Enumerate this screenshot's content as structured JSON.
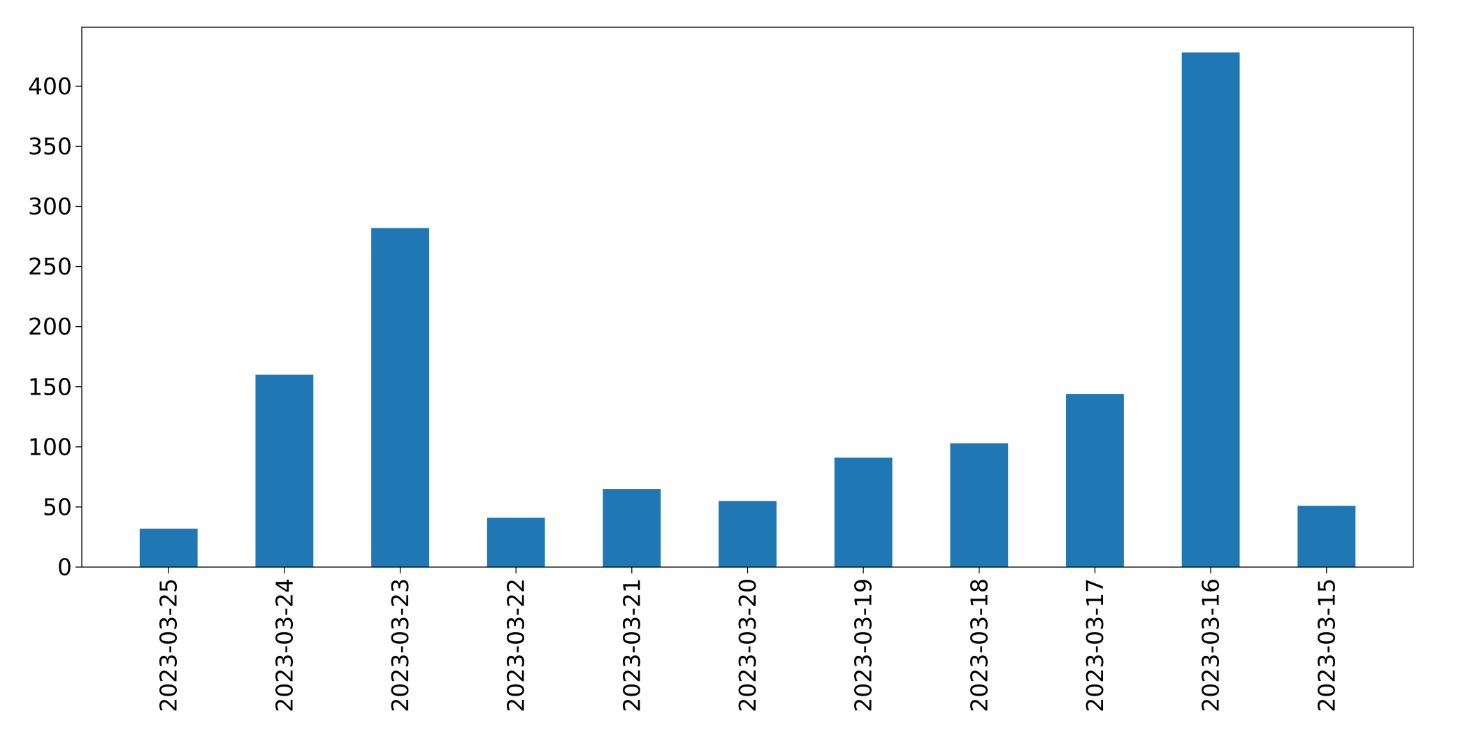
{
  "chart_data": {
    "type": "bar",
    "title": "",
    "xlabel": "",
    "ylabel": "",
    "categories": [
      "2023-03-25",
      "2023-03-24",
      "2023-03-23",
      "2023-03-22",
      "2023-03-21",
      "2023-03-20",
      "2023-03-19",
      "2023-03-18",
      "2023-03-17",
      "2023-03-16",
      "2023-03-15"
    ],
    "values": [
      32,
      160,
      282,
      41,
      65,
      55,
      91,
      103,
      144,
      428,
      51
    ],
    "ylim": [
      0,
      449
    ],
    "yticks": [
      0,
      50,
      100,
      150,
      200,
      250,
      300,
      350,
      400
    ],
    "grid": false,
    "bar_color": "#1f77b4",
    "axis_color": "#000000"
  }
}
